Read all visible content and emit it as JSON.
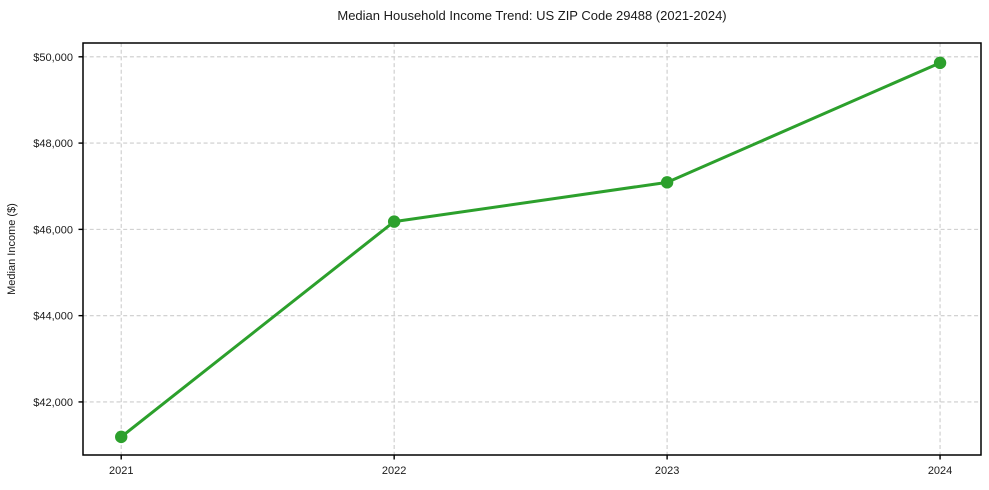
{
  "chart_data": {
    "type": "line",
    "title": "Median Household Income Trend: US ZIP Code 29488 (2021-2024)",
    "xlabel": "",
    "ylabel": "Median Income ($)",
    "x": [
      2021,
      2022,
      2023,
      2024
    ],
    "xtick_labels": [
      "2021",
      "2022",
      "2023",
      "2024"
    ],
    "series": [
      {
        "name": "Median Household Income",
        "values": [
          41190,
          46180,
          47090,
          49860
        ],
        "color": "#2ca02c",
        "marker": "circle"
      }
    ],
    "yticks": [
      42000,
      44000,
      46000,
      48000,
      50000
    ],
    "ytick_labels": [
      "$42,000",
      "$44,000",
      "$46,000",
      "$48,000",
      "$50,000"
    ],
    "xlim": [
      2020.86,
      2024.15
    ],
    "ylim": [
      40770,
      50320
    ],
    "grid": "dashed",
    "grid_color": "#cccccc",
    "axes_color": "#000000",
    "text_color": "#1a1a1a",
    "background": "#ffffff",
    "legend_position": "none"
  }
}
